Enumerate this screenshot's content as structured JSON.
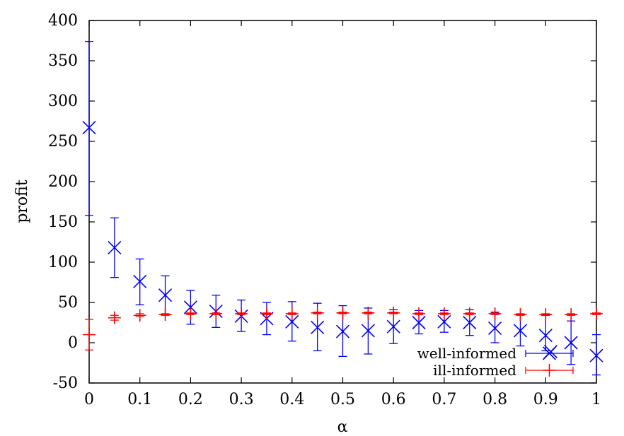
{
  "chart_data": {
    "type": "scatter",
    "title": "",
    "xlabel": "α",
    "ylabel": "profit",
    "xlim": [
      0,
      1
    ],
    "ylim": [
      -50,
      400
    ],
    "xticks": [
      "0",
      "0.1",
      "0.2",
      "0.3",
      "0.4",
      "0.5",
      "0.6",
      "0.7",
      "0.8",
      "0.9",
      "1"
    ],
    "yticks": [
      "400",
      "350",
      "300",
      "250",
      "200",
      "150",
      "100",
      "50",
      "0",
      "-50"
    ],
    "grid": false,
    "legend_position": "bottom-right",
    "series": [
      {
        "name": "well-informed",
        "color": "#0000ff",
        "marker": "x",
        "points": [
          {
            "x": 0.0,
            "y": 267,
            "low": 158,
            "high": 374
          },
          {
            "x": 0.05,
            "y": 118,
            "low": 81,
            "high": 155
          },
          {
            "x": 0.1,
            "y": 76,
            "low": 47,
            "high": 104
          },
          {
            "x": 0.15,
            "y": 59,
            "low": 35,
            "high": 83
          },
          {
            "x": 0.2,
            "y": 44,
            "low": 23,
            "high": 65
          },
          {
            "x": 0.25,
            "y": 39,
            "low": 19,
            "high": 59
          },
          {
            "x": 0.3,
            "y": 33,
            "low": 14,
            "high": 53
          },
          {
            "x": 0.35,
            "y": 30,
            "low": 10,
            "high": 50
          },
          {
            "x": 0.4,
            "y": 26,
            "low": 2,
            "high": 51
          },
          {
            "x": 0.45,
            "y": 19,
            "low": -10,
            "high": 49
          },
          {
            "x": 0.5,
            "y": 14,
            "low": -17,
            "high": 46
          },
          {
            "x": 0.55,
            "y": 15,
            "low": -14,
            "high": 43
          },
          {
            "x": 0.6,
            "y": 20,
            "low": -1,
            "high": 41
          },
          {
            "x": 0.65,
            "y": 25,
            "low": 11,
            "high": 40
          },
          {
            "x": 0.7,
            "y": 26,
            "low": 13,
            "high": 40
          },
          {
            "x": 0.75,
            "y": 25,
            "low": 9,
            "high": 41
          },
          {
            "x": 0.8,
            "y": 18,
            "low": 0,
            "high": 38
          },
          {
            "x": 0.85,
            "y": 15,
            "low": -4,
            "high": 35
          },
          {
            "x": 0.9,
            "y": 9,
            "low": -10,
            "high": 34
          },
          {
            "x": 0.91,
            "y": -11,
            "low": -11,
            "high": -11
          },
          {
            "x": 0.95,
            "y": 0,
            "low": -27,
            "high": 27
          },
          {
            "x": 1.0,
            "y": -16,
            "low": -40,
            "high": 10
          }
        ]
      },
      {
        "name": "ill-informed",
        "color": "#ff0000",
        "marker": "+",
        "points": [
          {
            "x": 0.0,
            "y": 10,
            "low": -9,
            "high": 29
          },
          {
            "x": 0.05,
            "y": 31,
            "low": 28,
            "high": 34
          },
          {
            "x": 0.1,
            "y": 34,
            "low": 33,
            "high": 36
          },
          {
            "x": 0.15,
            "y": 35,
            "low": 34,
            "high": 36
          },
          {
            "x": 0.2,
            "y": 36,
            "low": 35,
            "high": 37
          },
          {
            "x": 0.25,
            "y": 36,
            "low": 35,
            "high": 37
          },
          {
            "x": 0.3,
            "y": 36,
            "low": 35,
            "high": 37
          },
          {
            "x": 0.35,
            "y": 36,
            "low": 35,
            "high": 37
          },
          {
            "x": 0.4,
            "y": 36,
            "low": 35,
            "high": 37
          },
          {
            "x": 0.45,
            "y": 37,
            "low": 36,
            "high": 38
          },
          {
            "x": 0.5,
            "y": 37,
            "low": 36,
            "high": 38
          },
          {
            "x": 0.55,
            "y": 37,
            "low": 36,
            "high": 38
          },
          {
            "x": 0.6,
            "y": 37,
            "low": 36,
            "high": 38
          },
          {
            "x": 0.65,
            "y": 36,
            "low": 35,
            "high": 37
          },
          {
            "x": 0.7,
            "y": 36,
            "low": 35,
            "high": 37
          },
          {
            "x": 0.75,
            "y": 36,
            "low": 35,
            "high": 37
          },
          {
            "x": 0.8,
            "y": 36,
            "low": 35,
            "high": 37
          },
          {
            "x": 0.85,
            "y": 35,
            "low": 34,
            "high": 36
          },
          {
            "x": 0.9,
            "y": 35,
            "low": 34,
            "high": 36
          },
          {
            "x": 0.95,
            "y": 35,
            "low": 34,
            "high": 36
          },
          {
            "x": 1.0,
            "y": 36,
            "low": 35,
            "high": 37
          }
        ]
      }
    ]
  }
}
